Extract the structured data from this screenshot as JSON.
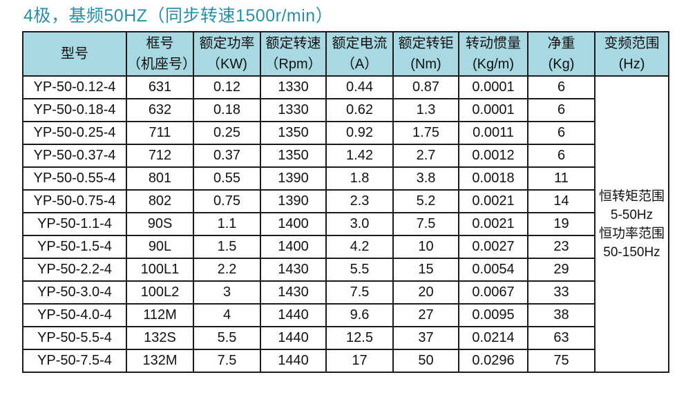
{
  "title": "4极，基频50HZ（同步转速1500r/min）",
  "colors": {
    "title_text": "#2A8FA4",
    "header_bg": "#A8D8E2",
    "border": "#1B1B1B",
    "cell_bg": "#FFFFFF"
  },
  "table": {
    "headers": [
      {
        "line1": "型号",
        "line2": ""
      },
      {
        "line1": "框号",
        "line2": "（机座号）"
      },
      {
        "line1": "额定功率",
        "line2": "（KW)"
      },
      {
        "line1": "额定转速",
        "line2": "（Rpm）"
      },
      {
        "line1": "额定电流",
        "line2": "（A）"
      },
      {
        "line1": "额定转钜",
        "line2": "(Nm)"
      },
      {
        "line1": "转动惯量",
        "line2": "(Kg/m)"
      },
      {
        "line1": "净重",
        "line2": "(Kg)"
      },
      {
        "line1": "变频范围",
        "line2": "(Hz)"
      }
    ],
    "rows": [
      [
        "YP-50-0.12-4",
        "631",
        "0.12",
        "1330",
        "0.44",
        "0.87",
        "0.0001",
        "6"
      ],
      [
        "YP-50-0.18-4",
        "632",
        "0.18",
        "1330",
        "0.62",
        "1.3",
        "0.0001",
        "6"
      ],
      [
        "YP-50-0.25-4",
        "711",
        "0.25",
        "1350",
        "0.92",
        "1.75",
        "0.0011",
        "6"
      ],
      [
        "YP-50-0.37-4",
        "712",
        "0.37",
        "1350",
        "1.42",
        "2.7",
        "0.0012",
        "6"
      ],
      [
        "YP-50-0.55-4",
        "801",
        "0.55",
        "1390",
        "1.8",
        "3.8",
        "0.0018",
        "11"
      ],
      [
        "YP-50-0.75-4",
        "802",
        "0.75",
        "1390",
        "2.3",
        "5.2",
        "0.0021",
        "14"
      ],
      [
        "YP-50-1.1-4",
        "90S",
        "1.1",
        "1400",
        "3.0",
        "7.5",
        "0.0021",
        "19"
      ],
      [
        "YP-50-1.5-4",
        "90L",
        "1.5",
        "1400",
        "4.2",
        "10",
        "0.0027",
        "23"
      ],
      [
        "YP-50-2.2-4",
        "100L1",
        "2.2",
        "1430",
        "5.5",
        "15",
        "0.0054",
        "29"
      ],
      [
        "YP-50-3.0-4",
        "100L2",
        "3",
        "1430",
        "7.5",
        "20",
        "0.0067",
        "33"
      ],
      [
        "YP-50-4.0-4",
        "112M",
        "4",
        "1440",
        "9.6",
        "27",
        "0.0095",
        "38"
      ],
      [
        "YP-50-5.5-4",
        "132S",
        "5.5",
        "1440",
        "12.5",
        "37",
        "0.0214",
        "63"
      ],
      [
        "YP-50-7.5-4",
        "132M",
        "7.5",
        "1440",
        "17",
        "50",
        "0.0296",
        "75"
      ]
    ],
    "merged_cell_lines": [
      "恒转矩范围",
      "5-50Hz",
      "恒功率范围",
      "50-150Hz"
    ]
  }
}
